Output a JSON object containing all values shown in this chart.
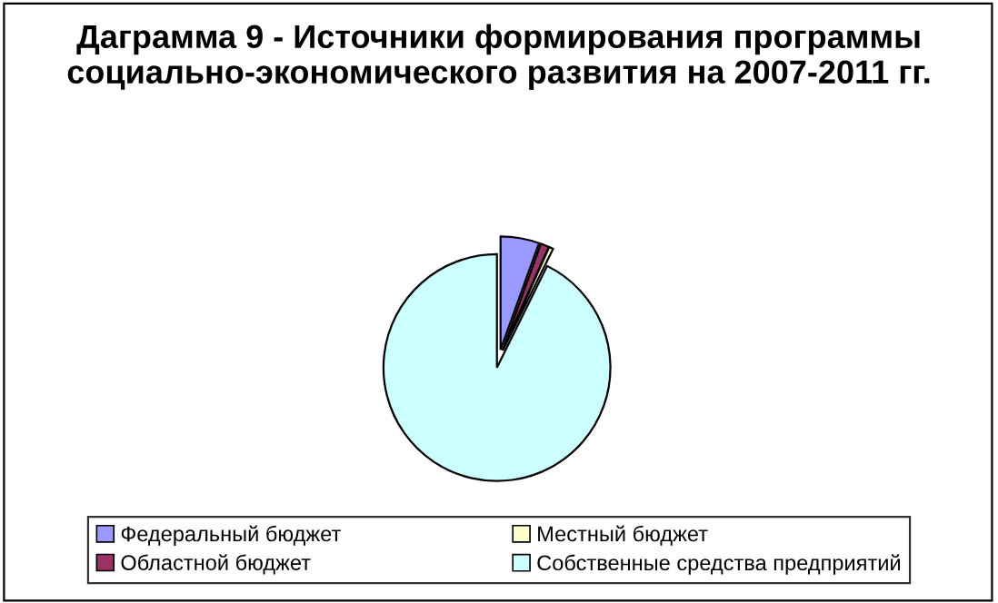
{
  "chart_data": {
    "type": "pie",
    "title": "Даграмма 9 - Источники формирования программы социально-экономического развития на 2007-2011 гг.",
    "categories": [
      "Федеральный бюджет",
      "Областной бюджет",
      "Местный бюджет",
      "Собственные средства предприятий"
    ],
    "values": [
      5.5,
      1.2,
      0.6,
      92.7
    ],
    "colors": [
      "#9999ff",
      "#993366",
      "#ffffcc",
      "#ccffff"
    ],
    "legend": "bottom"
  }
}
